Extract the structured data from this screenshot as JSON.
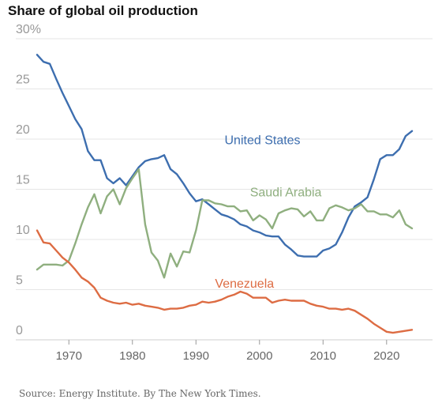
{
  "title": "Share of global oil production",
  "source": "Source: Energy Institute.  By The New York Times.",
  "chart_data": {
    "type": "line",
    "title": "Share of global oil production",
    "xlabel": "",
    "ylabel": "",
    "xlim": [
      1965,
      2024
    ],
    "ylim": [
      0,
      30
    ],
    "y_ticks": [
      0,
      5,
      10,
      15,
      20,
      25,
      30
    ],
    "y_tick_labels": [
      "0",
      "5",
      "10",
      "15",
      "20",
      "25",
      "30%"
    ],
    "x_ticks": [
      1970,
      1980,
      1990,
      2000,
      2010,
      2020
    ],
    "x_tick_labels": [
      "1970",
      "1980",
      "1990",
      "2000",
      "2010",
      "2020"
    ],
    "grid": true,
    "legend": "none (direct labels)",
    "x": [
      1965,
      1966,
      1967,
      1968,
      1969,
      1970,
      1971,
      1972,
      1973,
      1974,
      1975,
      1976,
      1977,
      1978,
      1979,
      1980,
      1981,
      1982,
      1983,
      1984,
      1985,
      1986,
      1987,
      1988,
      1989,
      1990,
      1991,
      1992,
      1993,
      1994,
      1995,
      1996,
      1997,
      1998,
      1999,
      2000,
      2001,
      2002,
      2003,
      2004,
      2005,
      2006,
      2007,
      2008,
      2009,
      2010,
      2011,
      2012,
      2013,
      2014,
      2015,
      2016,
      2017,
      2018,
      2019,
      2020,
      2021,
      2022,
      2023,
      2024
    ],
    "series": [
      {
        "name": "United States",
        "color": "#3d6eaf",
        "label_year": 1994.5,
        "label_value": 19.5,
        "values": [
          28.4,
          27.7,
          27.5,
          26.0,
          24.6,
          23.3,
          22.0,
          21.0,
          18.8,
          17.9,
          17.9,
          16.1,
          15.6,
          16.1,
          15.4,
          16.3,
          17.2,
          17.8,
          18.0,
          18.1,
          18.4,
          17.0,
          16.5,
          15.6,
          14.6,
          13.8,
          14.0,
          13.5,
          13.0,
          12.5,
          12.3,
          12.0,
          11.5,
          11.3,
          10.9,
          10.7,
          10.4,
          10.3,
          10.3,
          9.5,
          9.0,
          8.4,
          8.3,
          8.3,
          8.3,
          8.9,
          9.1,
          9.5,
          10.7,
          12.2,
          13.3,
          13.7,
          14.2,
          16.0,
          18.0,
          18.4,
          18.4,
          19.0,
          20.3,
          20.8
        ]
      },
      {
        "name": "Saudi Arabia",
        "color": "#8faf7f",
        "label_year": 1998.5,
        "label_value": 14.3,
        "values": [
          7.0,
          7.5,
          7.5,
          7.5,
          7.4,
          7.9,
          9.6,
          11.5,
          13.2,
          14.5,
          12.6,
          14.3,
          15.0,
          13.5,
          15.1,
          16.1,
          17.0,
          11.5,
          8.7,
          7.9,
          6.2,
          8.6,
          7.3,
          8.8,
          8.7,
          10.9,
          13.9,
          13.9,
          13.6,
          13.5,
          13.3,
          13.3,
          12.8,
          12.9,
          11.9,
          12.4,
          12.0,
          11.1,
          12.6,
          12.9,
          13.1,
          13.0,
          12.3,
          12.8,
          11.9,
          11.9,
          13.1,
          13.4,
          13.2,
          12.9,
          13.1,
          13.5,
          12.8,
          12.8,
          12.5,
          12.5,
          12.2,
          12.9,
          11.5,
          11.1
        ]
      },
      {
        "name": "Venezuela",
        "color": "#dd6c43",
        "label_year": 1993,
        "label_value": 5.2,
        "values": [
          10.9,
          9.7,
          9.6,
          8.9,
          8.2,
          7.7,
          7.0,
          6.2,
          5.8,
          5.2,
          4.2,
          3.9,
          3.7,
          3.6,
          3.7,
          3.5,
          3.6,
          3.4,
          3.3,
          3.2,
          3.0,
          3.1,
          3.1,
          3.2,
          3.4,
          3.5,
          3.8,
          3.7,
          3.8,
          4.0,
          4.3,
          4.5,
          4.8,
          4.6,
          4.2,
          4.2,
          4.2,
          3.7,
          3.9,
          4.0,
          3.9,
          3.9,
          3.9,
          3.6,
          3.4,
          3.3,
          3.1,
          3.1,
          3.0,
          3.1,
          2.9,
          2.5,
          2.1,
          1.6,
          1.2,
          0.8,
          0.7,
          0.8,
          0.9,
          1.0
        ]
      }
    ]
  }
}
